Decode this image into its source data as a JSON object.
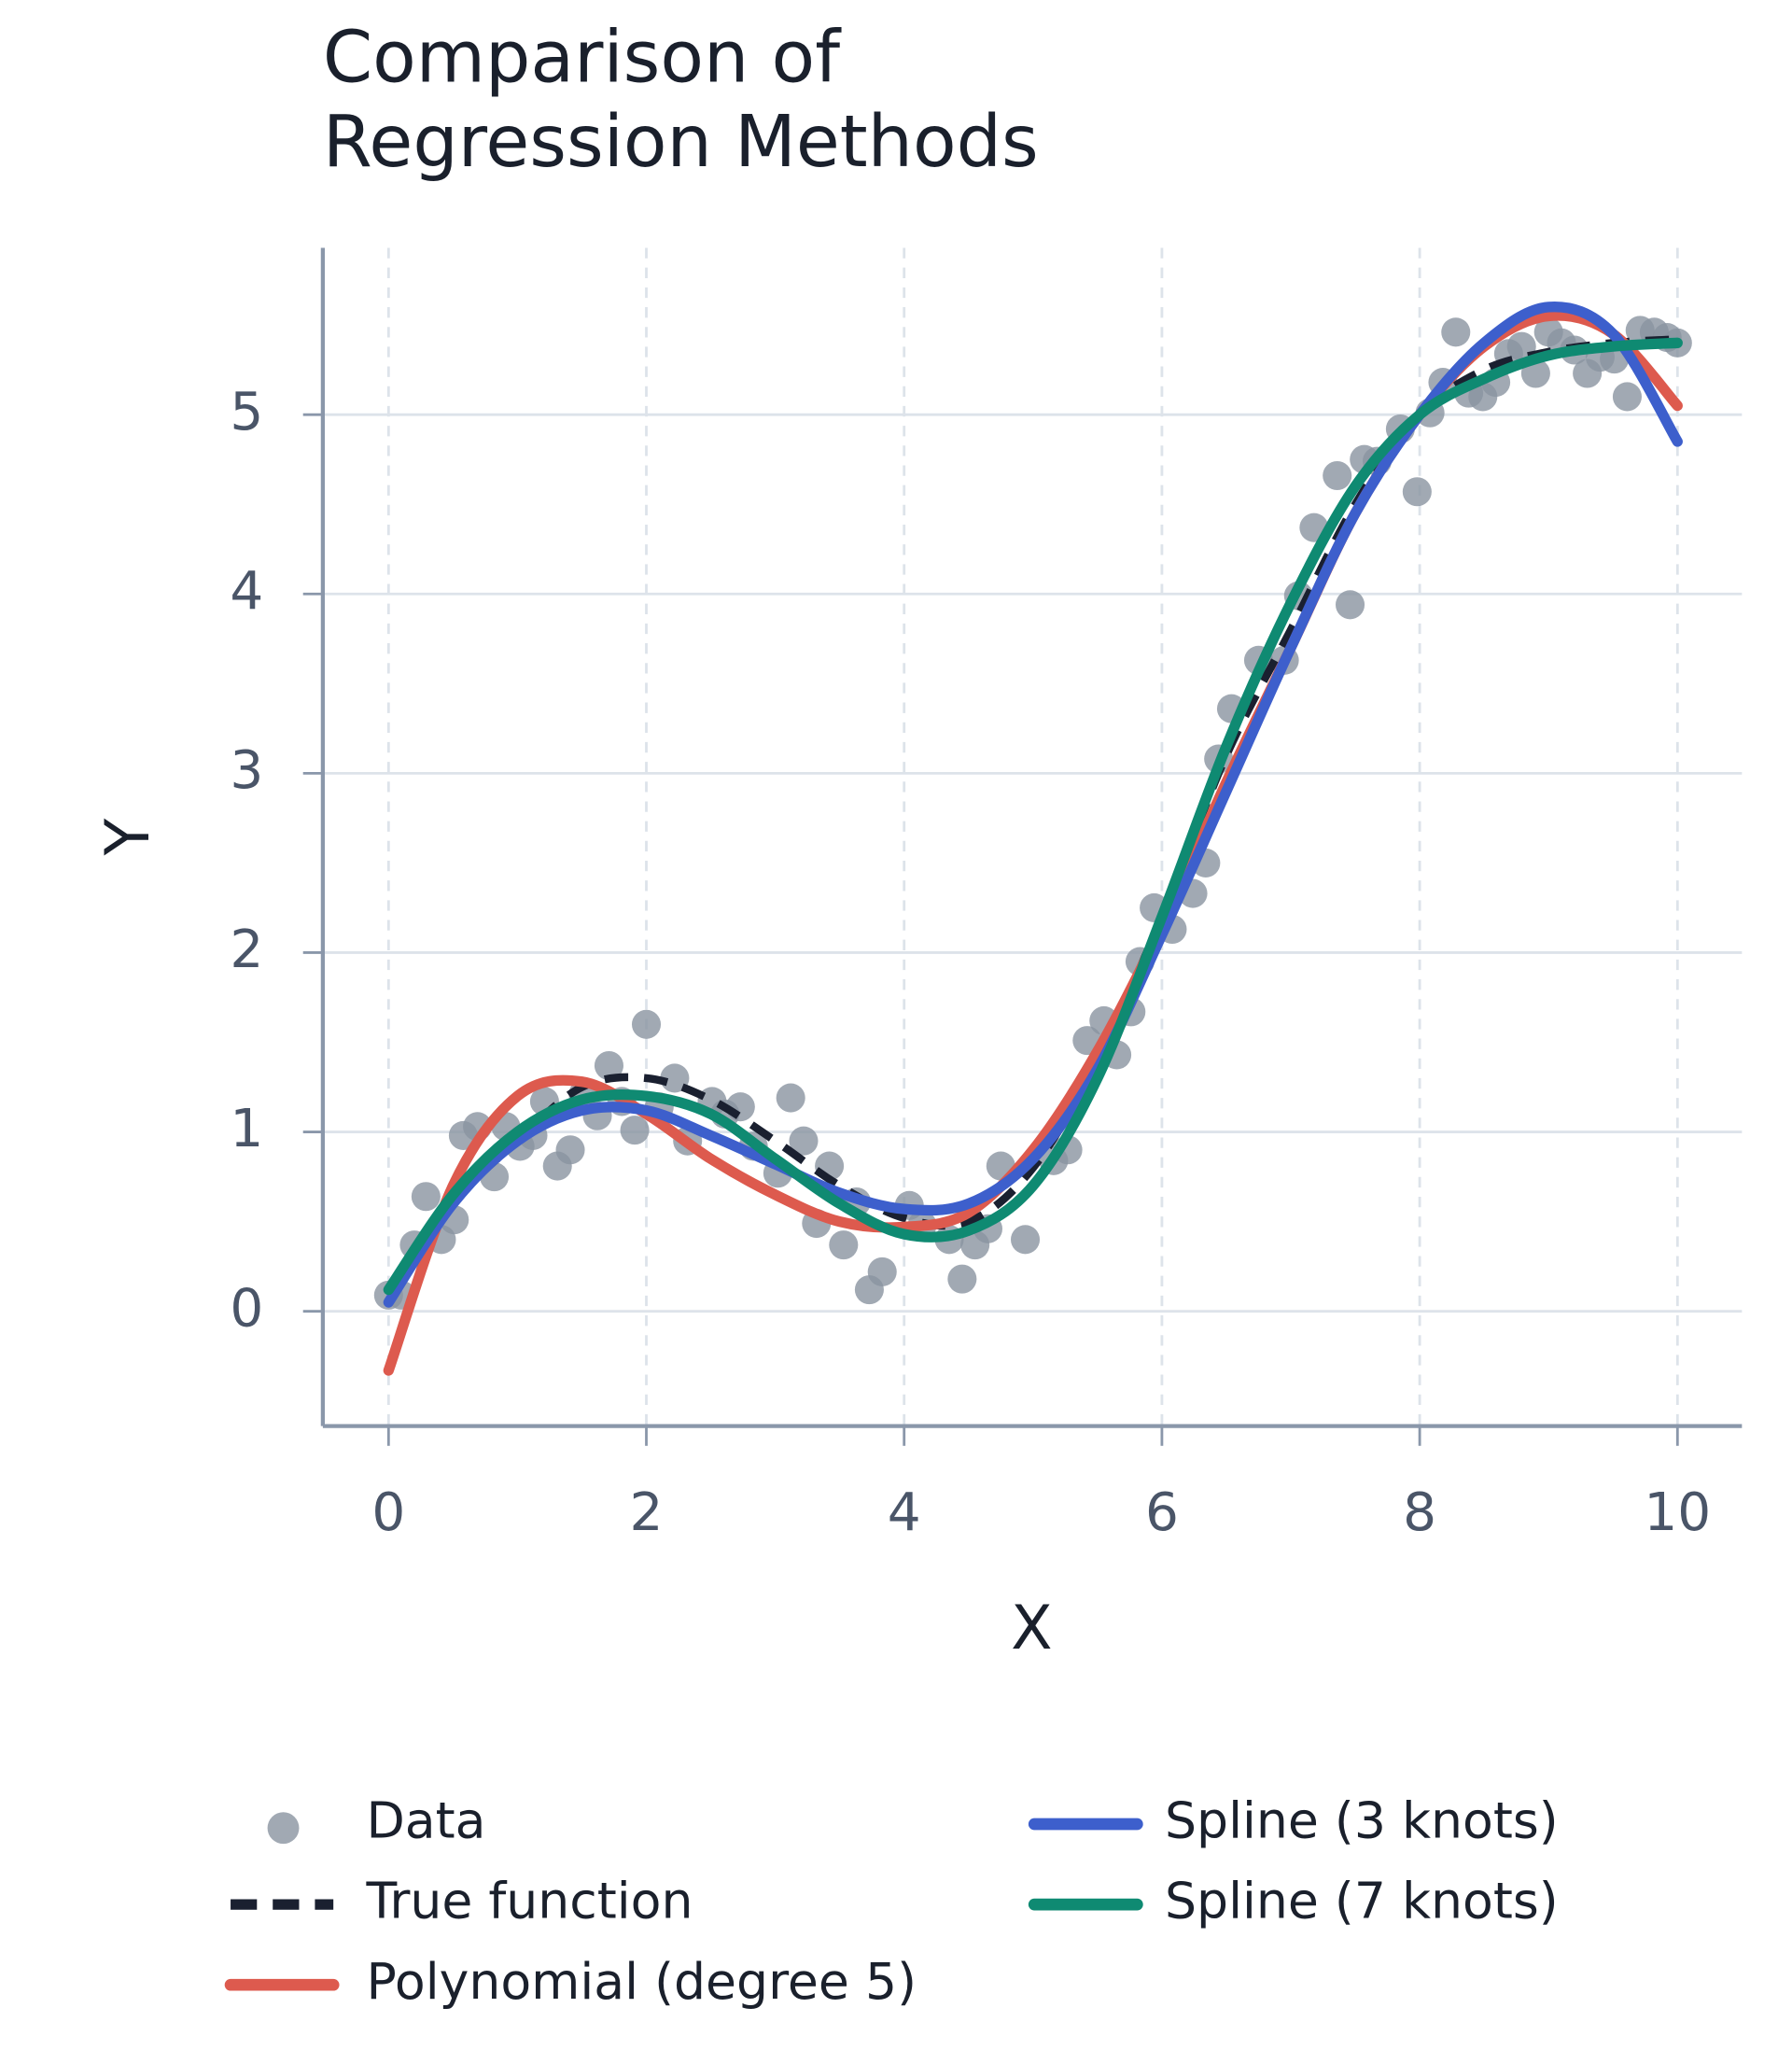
{
  "chart_data": {
    "type": "line",
    "title": "Comparison of Regression Methods",
    "x_label": "X",
    "y_label": "Y",
    "xlim": [
      -0.51,
      10.5
    ],
    "ylim": [
      -0.64,
      5.93
    ],
    "xticks": [
      0,
      2,
      4,
      6,
      8,
      10
    ],
    "yticks": [
      0,
      1,
      2,
      3,
      4,
      5
    ],
    "grid": true,
    "legend": "bottom",
    "scatter": {
      "name": "Data",
      "color": "#8a93a0",
      "x": [
        0,
        0.1,
        0.2,
        0.29,
        0.41,
        0.51,
        0.58,
        0.69,
        0.82,
        0.91,
        1.02,
        1.12,
        1.21,
        1.31,
        1.41,
        1.51,
        1.62,
        1.71,
        1.81,
        1.91,
        2.0,
        2.1,
        2.22,
        2.32,
        2.51,
        2.61,
        2.73,
        2.83,
        3.02,
        3.12,
        3.22,
        3.32,
        3.42,
        3.53,
        3.63,
        3.73,
        3.83,
        4.04,
        4.14,
        4.35,
        4.45,
        4.55,
        4.65,
        4.75,
        4.94,
        5.16,
        5.27,
        5.42,
        5.55,
        5.65,
        5.76,
        5.83,
        5.94,
        6.08,
        6.24,
        6.34,
        6.44,
        6.54,
        6.75,
        6.95,
        7.06,
        7.18,
        7.36,
        7.46,
        7.57,
        7.67,
        7.85,
        7.98,
        8.08,
        8.18,
        8.28,
        8.38,
        8.49,
        8.59,
        8.69,
        8.79,
        8.9,
        9.0,
        9.1,
        9.2,
        9.3,
        9.4,
        9.51,
        9.61,
        9.71,
        9.82,
        9.92,
        10.0
      ],
      "y": [
        0.09,
        0.09,
        0.37,
        0.64,
        0.4,
        0.51,
        0.98,
        1.03,
        0.75,
        1.03,
        0.92,
        0.98,
        1.17,
        0.81,
        0.9,
        1.21,
        1.09,
        1.37,
        1.17,
        1.01,
        1.6,
        1.14,
        1.3,
        0.95,
        1.17,
        1.1,
        1.14,
        0.92,
        0.77,
        1.19,
        0.95,
        0.49,
        0.81,
        0.37,
        0.61,
        0.12,
        0.22,
        0.59,
        0.48,
        0.4,
        0.18,
        0.37,
        0.46,
        0.81,
        0.4,
        0.84,
        0.9,
        1.51,
        1.62,
        1.43,
        1.67,
        1.95,
        2.25,
        2.13,
        2.33,
        2.5,
        3.08,
        3.36,
        3.63,
        3.63,
        3.99,
        4.37,
        4.66,
        3.94,
        4.75,
        4.74,
        4.92,
        4.57,
        5.01,
        5.18,
        5.46,
        5.12,
        5.1,
        5.18,
        5.34,
        5.38,
        5.23,
        5.46,
        5.4,
        5.36,
        5.23,
        5.32,
        5.31,
        5.1,
        5.47,
        5.46,
        5.43,
        5.4
      ]
    },
    "x": [
      0,
      0.5,
      1,
      1.5,
      2,
      2.5,
      3,
      3.5,
      4,
      4.5,
      5,
      5.5,
      6,
      6.5,
      7,
      7.5,
      8,
      8.5,
      9,
      9.5,
      10
    ],
    "series": [
      {
        "name": "True function",
        "color": "#1a2030",
        "dashed": true,
        "values": [
          0.05,
          0.6,
          0.95,
          1.25,
          1.3,
          1.18,
          0.95,
          0.7,
          0.52,
          0.5,
          0.8,
          1.4,
          2.2,
          3.1,
          3.8,
          4.5,
          5.0,
          5.25,
          5.35,
          5.4,
          5.42
        ]
      },
      {
        "name": "Polynomial (degree 5)",
        "color": "#dd5a4e",
        "values": [
          -0.33,
          0.7,
          1.2,
          1.28,
          1.1,
          0.85,
          0.65,
          0.5,
          0.47,
          0.55,
          0.9,
          1.45,
          2.15,
          2.95,
          3.7,
          4.45,
          5.0,
          5.38,
          5.55,
          5.45,
          5.05
        ]
      },
      {
        "name": "Spline (3 knots)",
        "color": "#3d5fcc",
        "values": [
          0.05,
          0.6,
          0.95,
          1.12,
          1.12,
          0.98,
          0.82,
          0.66,
          0.57,
          0.6,
          0.85,
          1.35,
          2.1,
          2.9,
          3.7,
          4.45,
          5.0,
          5.4,
          5.6,
          5.45,
          4.85
        ]
      },
      {
        "name": "Spline (7 knots)",
        "color": "#0f8a72",
        "values": [
          0.12,
          0.65,
          1.0,
          1.18,
          1.2,
          1.1,
          0.85,
          0.6,
          0.43,
          0.45,
          0.7,
          1.3,
          2.2,
          3.15,
          3.95,
          4.6,
          5.0,
          5.2,
          5.33,
          5.38,
          5.4
        ]
      }
    ]
  }
}
